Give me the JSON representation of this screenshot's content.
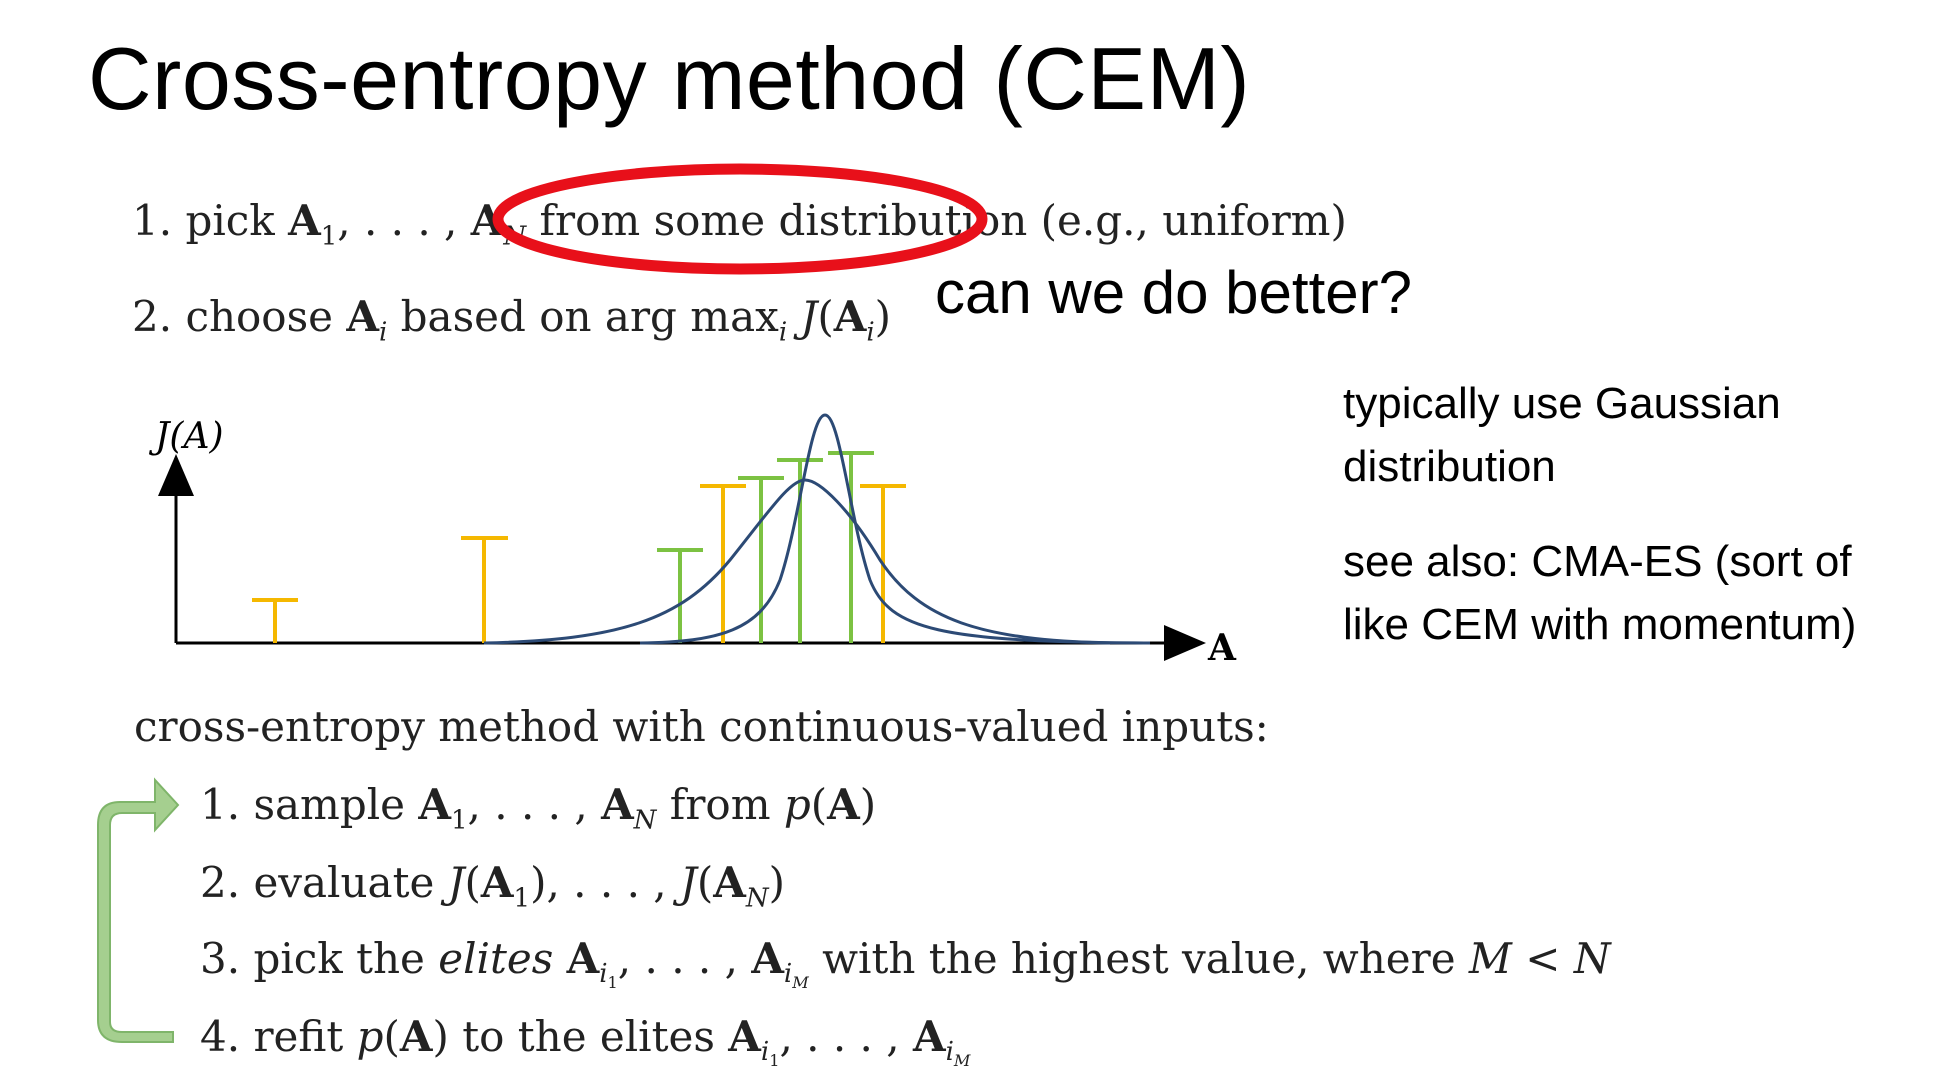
{
  "slide": {
    "title": "Cross-entropy method (CEM)",
    "steps_top": [
      {
        "num": "1.",
        "pre": "pick",
        "after_list": "from some distribution",
        "tail": "(e.g., uniform)"
      },
      {
        "num": "2.",
        "pre": "choose",
        "mid": "based on",
        "argmax": "arg max",
        "tail": ""
      }
    ],
    "annotation": "can we do better?",
    "side_notes": [
      "typically use Gaussian distribution",
      "see also: CMA-ES (sort of like CEM with momentum)"
    ],
    "continuous_heading": "cross-entropy method with continuous-valued inputs:",
    "steps_bottom": [
      {
        "num": "1.",
        "text_a": "sample",
        "text_b": "from"
      },
      {
        "num": "2.",
        "text_a": "evaluate"
      },
      {
        "num": "3.",
        "text_a": "pick the",
        "elites": "elites",
        "text_b": "with the highest value, where"
      },
      {
        "num": "4.",
        "text_a": "refit",
        "text_b": "to the elites"
      }
    ]
  },
  "diagram": {
    "y_axis_label": "J(A)",
    "x_axis_label": "A",
    "colors": {
      "samples": "#f5b800",
      "elites": "#7cc242",
      "curve": "#2c4a75",
      "highlight_ellipse": "#e8101a",
      "loop_arrow": "#8fc47e"
    }
  }
}
